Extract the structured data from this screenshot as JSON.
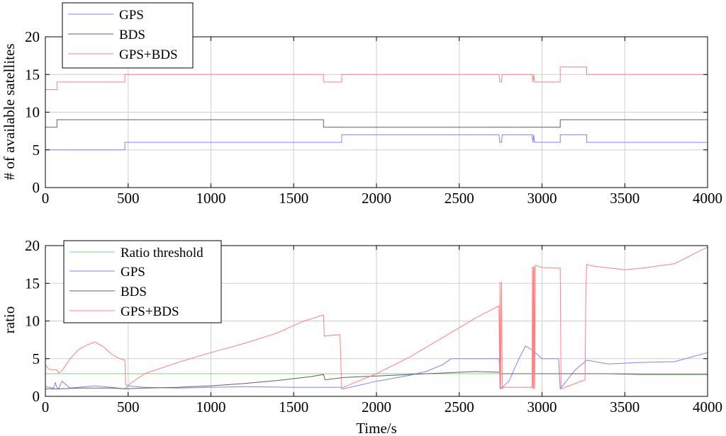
{
  "chart_data": [
    {
      "type": "line",
      "ylabel": "# of available satellites",
      "xlabel": "",
      "xlim": [
        0,
        4000
      ],
      "ylim": [
        0,
        20
      ],
      "xticks": [
        0,
        500,
        1000,
        1500,
        2000,
        2500,
        3000,
        3500,
        4000
      ],
      "yticks": [
        0,
        5,
        10,
        15,
        20
      ],
      "grid": true,
      "legend_position": "top-left",
      "series": [
        {
          "name": "GPS",
          "color": "#8080ff",
          "x": [
            0,
            480,
            480,
            1790,
            1790,
            2740,
            2745,
            2755,
            2760,
            2940,
            2945,
            2950,
            2955,
            3110,
            3110,
            3270,
            3270,
            4000
          ],
          "y": [
            5,
            5,
            6,
            6,
            7,
            7,
            6,
            6,
            7,
            7,
            6,
            7,
            6,
            6,
            7,
            7,
            6,
            6
          ]
        },
        {
          "name": "BDS",
          "color": "#606060",
          "x": [
            0,
            70,
            70,
            1680,
            1680,
            3110,
            3110,
            4000
          ],
          "y": [
            8,
            8,
            9,
            9,
            8,
            8,
            9,
            9
          ]
        },
        {
          "name": "GPS+BDS",
          "color": "#ff8080",
          "x": [
            0,
            70,
            70,
            480,
            480,
            1680,
            1680,
            1790,
            1790,
            2740,
            2745,
            2755,
            2760,
            2940,
            2945,
            2950,
            2955,
            3110,
            3110,
            3270,
            3270,
            4000
          ],
          "y": [
            13,
            13,
            14,
            14,
            15,
            15,
            14,
            14,
            15,
            15,
            14,
            14,
            15,
            15,
            14,
            15,
            14,
            14,
            16,
            16,
            15,
            15
          ]
        }
      ]
    },
    {
      "type": "line",
      "ylabel": "ratio",
      "xlabel": "Time/s",
      "xlim": [
        0,
        4000
      ],
      "ylim": [
        0,
        20
      ],
      "xticks": [
        0,
        500,
        1000,
        1500,
        2000,
        2500,
        3000,
        3500,
        4000
      ],
      "yticks": [
        0,
        5,
        10,
        15,
        20
      ],
      "grid": true,
      "legend_position": "top-left",
      "series": [
        {
          "name": "Ratio threshold",
          "color": "#80d080",
          "x": [
            0,
            4000
          ],
          "y": [
            3,
            3
          ]
        },
        {
          "name": "GPS",
          "color": "#8080ff",
          "x": [
            0,
            50,
            60,
            70,
            80,
            100,
            150,
            200,
            300,
            400,
            480,
            500,
            600,
            800,
            1000,
            1200,
            1500,
            1700,
            1780,
            1800,
            2000,
            2200,
            2300,
            2400,
            2450,
            2500,
            2600,
            2700,
            2740,
            2750,
            2800,
            2850,
            2900,
            2950,
            3000,
            3100,
            3110,
            3200,
            3270,
            3400,
            3600,
            3800,
            3900,
            4000
          ],
          "y": [
            1.3,
            1.1,
            1.8,
            1.2,
            1.0,
            2.0,
            1.1,
            1.2,
            1.4,
            1.2,
            1.0,
            1.4,
            1.2,
            1.1,
            1.2,
            1.3,
            1.2,
            1.2,
            1.2,
            1.0,
            2.0,
            2.8,
            3.3,
            4.2,
            5.0,
            5.0,
            5.0,
            5.0,
            5.0,
            1.0,
            2.0,
            4.5,
            6.7,
            6.0,
            5.0,
            5.0,
            1.0,
            3.5,
            4.8,
            4.3,
            4.5,
            4.6,
            5.2,
            5.8
          ]
        },
        {
          "name": "BDS",
          "color": "#606060",
          "x": [
            0,
            80,
            200,
            400,
            480,
            600,
            800,
            1000,
            1200,
            1400,
            1600,
            1680,
            1690,
            1800,
            1900,
            2000,
            2200,
            2400,
            2600,
            2740,
            2750,
            2950,
            3000,
            3110,
            3400,
            3600,
            3800,
            4000
          ],
          "y": [
            1.0,
            1.0,
            1.1,
            1.1,
            1.0,
            1.1,
            1.2,
            1.4,
            1.7,
            2.1,
            2.6,
            2.9,
            2.2,
            2.5,
            2.6,
            2.7,
            2.9,
            3.1,
            3.3,
            3.2,
            3.0,
            3.0,
            3.0,
            3.0,
            3.0,
            2.9,
            2.9,
            2.9
          ]
        },
        {
          "name": "GPS+BDS",
          "color": "#ff8080",
          "x": [
            0,
            20,
            70,
            80,
            100,
            150,
            200,
            250,
            300,
            350,
            400,
            450,
            480,
            485,
            500,
            600,
            800,
            1000,
            1200,
            1400,
            1550,
            1650,
            1680,
            1685,
            1780,
            1790,
            1800,
            2000,
            2200,
            2400,
            2600,
            2740,
            2745,
            2746,
            2750,
            2756,
            2760,
            2765,
            2940,
            2942,
            2945,
            2948,
            2950,
            2953,
            2956,
            2960,
            3000,
            3110,
            3115,
            3260,
            3265,
            3270,
            3300,
            3500,
            3600,
            3800,
            4000
          ],
          "y": [
            4.2,
            3.6,
            3.5,
            3.1,
            3.4,
            5.0,
            6.2,
            6.8,
            7.2,
            6.6,
            5.6,
            5.0,
            4.8,
            1.5,
            1.5,
            3.0,
            4.5,
            5.8,
            7.0,
            8.4,
            9.9,
            10.6,
            10.8,
            8.0,
            8.2,
            1.0,
            1.2,
            3.0,
            5.2,
            7.8,
            10.4,
            12.0,
            1.0,
            15.2,
            1.0,
            15.2,
            1.0,
            1.2,
            1.2,
            17.2,
            1.0,
            17.2,
            1.0,
            17.2,
            1.0,
            17.4,
            17.1,
            17.0,
            1.0,
            2.2,
            14.5,
            17.5,
            17.3,
            16.8,
            17.0,
            17.6,
            19.8
          ]
        }
      ]
    }
  ]
}
